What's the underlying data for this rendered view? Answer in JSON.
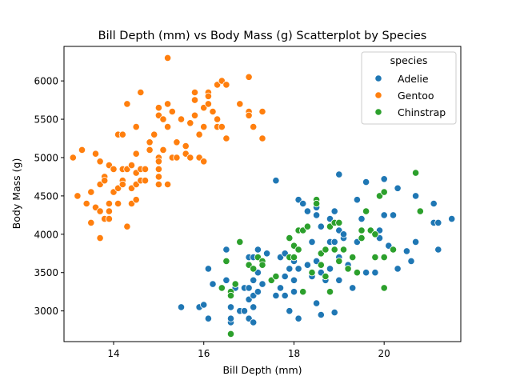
{
  "chart_data": {
    "type": "scatter",
    "title": "Bill Depth (mm) vs Body Mass (g) Scatterplot by Species",
    "xlabel": "Bill Depth (mm)",
    "ylabel": "Body Mass (g)",
    "xlim": [
      12.9,
      21.7
    ],
    "ylim": [
      2600,
      6450
    ],
    "xticks": [
      14,
      16,
      18,
      20
    ],
    "yticks": [
      3000,
      3500,
      4000,
      4500,
      5000,
      5500,
      6000
    ],
    "grid": false,
    "legend": {
      "title": "species",
      "placement": "top-right"
    },
    "series": [
      {
        "name": "Adelie",
        "color": "#1f77b4",
        "points": [
          [
            15.5,
            3050
          ],
          [
            15.9,
            3050
          ],
          [
            16.0,
            3080
          ],
          [
            16.1,
            2900
          ],
          [
            16.1,
            3550
          ],
          [
            16.2,
            3350
          ],
          [
            16.5,
            3400
          ],
          [
            16.5,
            3800
          ],
          [
            16.6,
            2850
          ],
          [
            16.6,
            2900
          ],
          [
            16.6,
            3050
          ],
          [
            16.7,
            3300
          ],
          [
            16.8,
            3000
          ],
          [
            16.9,
            3000
          ],
          [
            16.9,
            3300
          ],
          [
            17.0,
            2900
          ],
          [
            17.0,
            3150
          ],
          [
            17.0,
            3300
          ],
          [
            17.0,
            3700
          ],
          [
            17.1,
            2850
          ],
          [
            17.1,
            3050
          ],
          [
            17.1,
            3200
          ],
          [
            17.1,
            3400
          ],
          [
            17.1,
            3700
          ],
          [
            17.2,
            3250
          ],
          [
            17.2,
            3500
          ],
          [
            17.2,
            3800
          ],
          [
            17.3,
            3350
          ],
          [
            17.3,
            3600
          ],
          [
            17.4,
            3750
          ],
          [
            17.5,
            3400
          ],
          [
            17.6,
            3200
          ],
          [
            17.6,
            4700
          ],
          [
            17.7,
            3700
          ],
          [
            17.7,
            3300
          ],
          [
            17.8,
            3200
          ],
          [
            17.8,
            3450
          ],
          [
            17.8,
            3750
          ],
          [
            17.9,
            3550
          ],
          [
            17.9,
            3000
          ],
          [
            18.0,
            3400
          ],
          [
            18.0,
            3650
          ],
          [
            18.0,
            3250
          ],
          [
            18.1,
            2900
          ],
          [
            18.1,
            4450
          ],
          [
            18.1,
            3550
          ],
          [
            18.2,
            4400
          ],
          [
            18.2,
            3250
          ],
          [
            18.3,
            4300
          ],
          [
            18.3,
            3600
          ],
          [
            18.4,
            3900
          ],
          [
            18.4,
            3450
          ],
          [
            18.5,
            4350
          ],
          [
            18.5,
            4250
          ],
          [
            18.5,
            3650
          ],
          [
            18.5,
            3100
          ],
          [
            18.6,
            4100
          ],
          [
            18.6,
            2950
          ],
          [
            18.6,
            3500
          ],
          [
            18.7,
            3800
          ],
          [
            18.7,
            3400
          ],
          [
            18.8,
            4200
          ],
          [
            18.8,
            3900
          ],
          [
            18.8,
            3550
          ],
          [
            18.9,
            4300
          ],
          [
            18.9,
            3900
          ],
          [
            18.9,
            2980
          ],
          [
            19.0,
            4050
          ],
          [
            19.0,
            3700
          ],
          [
            19.0,
            3400
          ],
          [
            19.0,
            4780
          ],
          [
            19.1,
            3950
          ],
          [
            19.1,
            4000
          ],
          [
            19.2,
            3600
          ],
          [
            19.3,
            3300
          ],
          [
            19.4,
            4450
          ],
          [
            19.4,
            3900
          ],
          [
            19.5,
            4200
          ],
          [
            19.6,
            4680
          ],
          [
            19.6,
            3500
          ],
          [
            19.8,
            3500
          ],
          [
            19.9,
            3950
          ],
          [
            19.9,
            4050
          ],
          [
            20.0,
            4720
          ],
          [
            20.0,
            4250
          ],
          [
            20.1,
            3850
          ],
          [
            20.2,
            4250
          ],
          [
            20.3,
            4600
          ],
          [
            20.3,
            3550
          ],
          [
            20.5,
            3780
          ],
          [
            20.6,
            3650
          ],
          [
            20.7,
            4500
          ],
          [
            20.7,
            3900
          ],
          [
            21.1,
            4400
          ],
          [
            21.1,
            4150
          ],
          [
            21.2,
            4150
          ],
          [
            21.2,
            3800
          ],
          [
            21.5,
            4200
          ]
        ]
      },
      {
        "name": "Gentoo",
        "color": "#ff7f0e",
        "points": [
          [
            13.1,
            5000
          ],
          [
            13.2,
            4500
          ],
          [
            13.3,
            5100
          ],
          [
            13.4,
            4400
          ],
          [
            13.5,
            4150
          ],
          [
            13.5,
            4550
          ],
          [
            13.6,
            5050
          ],
          [
            13.6,
            4350
          ],
          [
            13.7,
            4950
          ],
          [
            13.7,
            4650
          ],
          [
            13.7,
            4300
          ],
          [
            13.7,
            3950
          ],
          [
            13.8,
            4750
          ],
          [
            13.8,
            4200
          ],
          [
            13.8,
            4700
          ],
          [
            13.9,
            4900
          ],
          [
            13.9,
            4400
          ],
          [
            13.9,
            4300
          ],
          [
            13.9,
            4200
          ],
          [
            14.0,
            4850
          ],
          [
            14.0,
            4550
          ],
          [
            14.1,
            5300
          ],
          [
            14.1,
            4600
          ],
          [
            14.1,
            4400
          ],
          [
            14.2,
            5300
          ],
          [
            14.2,
            4850
          ],
          [
            14.2,
            4700
          ],
          [
            14.2,
            4650
          ],
          [
            14.3,
            5700
          ],
          [
            14.3,
            4850
          ],
          [
            14.3,
            4100
          ],
          [
            14.4,
            4600
          ],
          [
            14.4,
            4400
          ],
          [
            14.4,
            4900
          ],
          [
            14.5,
            5400
          ],
          [
            14.5,
            5050
          ],
          [
            14.5,
            4800
          ],
          [
            14.5,
            4650
          ],
          [
            14.5,
            4450
          ],
          [
            14.6,
            5850
          ],
          [
            14.6,
            4850
          ],
          [
            14.6,
            4700
          ],
          [
            14.7,
            4850
          ],
          [
            14.7,
            4700
          ],
          [
            14.8,
            5200
          ],
          [
            14.8,
            5100
          ],
          [
            14.9,
            5300
          ],
          [
            15.0,
            5650
          ],
          [
            15.0,
            5550
          ],
          [
            15.0,
            5000
          ],
          [
            15.0,
            4950
          ],
          [
            15.0,
            4850
          ],
          [
            15.0,
            4750
          ],
          [
            15.0,
            4650
          ],
          [
            15.1,
            5500
          ],
          [
            15.1,
            5100
          ],
          [
            15.2,
            6300
          ],
          [
            15.2,
            5700
          ],
          [
            15.2,
            5400
          ],
          [
            15.2,
            4650
          ],
          [
            15.3,
            5000
          ],
          [
            15.3,
            5600
          ],
          [
            15.4,
            5200
          ],
          [
            15.4,
            5000
          ],
          [
            15.5,
            5500
          ],
          [
            15.6,
            5150
          ],
          [
            15.6,
            5050
          ],
          [
            15.7,
            5450
          ],
          [
            15.7,
            5000
          ],
          [
            15.8,
            5850
          ],
          [
            15.8,
            5750
          ],
          [
            15.8,
            5550
          ],
          [
            15.9,
            5300
          ],
          [
            15.9,
            5000
          ],
          [
            16.0,
            5650
          ],
          [
            16.0,
            5400
          ],
          [
            16.0,
            4950
          ],
          [
            16.1,
            5850
          ],
          [
            16.1,
            5700
          ],
          [
            16.1,
            5800
          ],
          [
            16.2,
            5600
          ],
          [
            16.3,
            5950
          ],
          [
            16.3,
            5500
          ],
          [
            16.3,
            5400
          ],
          [
            16.4,
            6000
          ],
          [
            16.4,
            5400
          ],
          [
            16.5,
            5950
          ],
          [
            16.5,
            5250
          ],
          [
            16.8,
            5700
          ],
          [
            17.0,
            6050
          ],
          [
            17.0,
            5600
          ],
          [
            17.0,
            5550
          ],
          [
            17.1,
            5400
          ],
          [
            17.3,
            5600
          ],
          [
            17.3,
            5250
          ]
        ]
      },
      {
        "name": "Chinstrap",
        "color": "#2ca02c",
        "points": [
          [
            16.4,
            3300
          ],
          [
            16.5,
            3650
          ],
          [
            16.6,
            2700
          ],
          [
            16.6,
            3250
          ],
          [
            16.6,
            3200
          ],
          [
            16.7,
            3350
          ],
          [
            16.8,
            3900
          ],
          [
            17.0,
            3600
          ],
          [
            17.1,
            3550
          ],
          [
            17.2,
            3700
          ],
          [
            17.3,
            3650
          ],
          [
            17.3,
            3600
          ],
          [
            17.5,
            3400
          ],
          [
            17.6,
            3450
          ],
          [
            17.9,
            3950
          ],
          [
            17.9,
            3700
          ],
          [
            18.0,
            3850
          ],
          [
            18.0,
            3700
          ],
          [
            18.1,
            4050
          ],
          [
            18.1,
            3800
          ],
          [
            18.2,
            3250
          ],
          [
            18.2,
            4050
          ],
          [
            18.3,
            4100
          ],
          [
            18.4,
            3500
          ],
          [
            18.5,
            4450
          ],
          [
            18.5,
            4400
          ],
          [
            18.6,
            3600
          ],
          [
            18.6,
            3750
          ],
          [
            18.7,
            3450
          ],
          [
            18.7,
            3800
          ],
          [
            18.8,
            4100
          ],
          [
            18.8,
            3250
          ],
          [
            18.9,
            4150
          ],
          [
            18.9,
            3800
          ],
          [
            19.0,
            4150
          ],
          [
            19.0,
            3650
          ],
          [
            19.1,
            3800
          ],
          [
            19.2,
            3550
          ],
          [
            19.3,
            3700
          ],
          [
            19.4,
            3500
          ],
          [
            19.5,
            4050
          ],
          [
            19.5,
            3950
          ],
          [
            19.6,
            4300
          ],
          [
            19.7,
            4050
          ],
          [
            19.8,
            4000
          ],
          [
            19.8,
            3700
          ],
          [
            19.9,
            4500
          ],
          [
            20.0,
            4550
          ],
          [
            20.0,
            3700
          ],
          [
            20.0,
            3300
          ],
          [
            20.2,
            3800
          ],
          [
            20.7,
            4800
          ],
          [
            20.8,
            4300
          ]
        ]
      }
    ]
  }
}
